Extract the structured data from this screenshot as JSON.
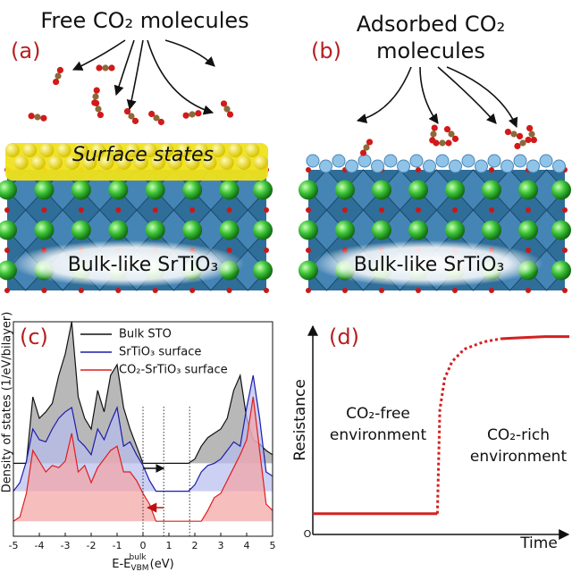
{
  "panels": {
    "a": {
      "label": "(a)",
      "title": "Free CO₂ molecules",
      "surface": "Surface states",
      "bulk": "Bulk-like SrTiO₃"
    },
    "b": {
      "label": "(b)",
      "title": [
        "Adsorbed CO₂",
        "molecules"
      ],
      "bulk": "Bulk-like SrTiO₃"
    }
  },
  "chart_data": [
    {
      "type": "line",
      "panel_label": "(c)",
      "ylabel": "Density of states (1/eV/bilayer)",
      "xlabel": {
        "text": "E-E",
        "sup": "bulk",
        "sub": "VBM",
        "unit": "(eV)"
      },
      "xlim": [
        -5,
        5
      ],
      "xticks": [
        -5,
        -4,
        -3,
        -2,
        -1,
        0,
        1,
        2,
        3,
        4,
        5
      ],
      "ylim": [
        0,
        10
      ],
      "legend": "upper center",
      "vlines": [
        0,
        0.8,
        1.8
      ],
      "x": [
        -5,
        -4.75,
        -4.5,
        -4.25,
        -4,
        -3.75,
        -3.5,
        -3.25,
        -3,
        -2.75,
        -2.5,
        -2.25,
        -2,
        -1.75,
        -1.5,
        -1.25,
        -1,
        -0.75,
        -0.5,
        -0.25,
        0,
        0.25,
        0.5,
        0.75,
        1,
        1.25,
        1.5,
        1.75,
        2,
        2.25,
        2.5,
        2.75,
        3,
        3.25,
        3.5,
        3.75,
        4,
        4.25,
        4.5,
        4.75,
        5
      ],
      "series": [
        {
          "name": "Bulk STO",
          "color": "#111111",
          "fill": "#9a9a9a",
          "values": [
            3.4,
            3.4,
            3.4,
            6.5,
            5.5,
            5.8,
            6.2,
            7.5,
            8.5,
            10,
            6.5,
            5.5,
            5.0,
            6.8,
            5.8,
            7.5,
            8.0,
            6.0,
            5.0,
            4.2,
            3.4,
            3.4,
            3.4,
            3.4,
            3.4,
            3.4,
            3.4,
            3.4,
            3.6,
            4.2,
            4.6,
            4.8,
            5.0,
            5.5,
            6.8,
            7.5,
            5.5,
            4.5,
            4.3,
            4.0,
            3.8
          ]
        },
        {
          "name": "SrTiO₃ surface",
          "color": "#1c1caa",
          "fill": "#b7bdf0",
          "values": [
            2.1,
            2.5,
            3.5,
            5.0,
            4.5,
            4.4,
            5.0,
            5.5,
            5.8,
            6.0,
            4.5,
            4.2,
            3.8,
            5.0,
            4.5,
            5.3,
            6.0,
            4.2,
            4.4,
            3.8,
            3.3,
            2.6,
            2.1,
            2.1,
            2.1,
            2.1,
            2.1,
            2.1,
            2.4,
            3.0,
            3.3,
            3.4,
            3.6,
            4.0,
            4.4,
            4.2,
            6.0,
            7.5,
            5.5,
            3.0,
            2.8
          ]
        },
        {
          "name": "CO₂-SrTiO₃ surface",
          "color": "#e01d1d",
          "fill": "#f4a3a3",
          "values": [
            0.7,
            0.9,
            2.0,
            4.0,
            3.5,
            3.0,
            3.3,
            3.2,
            3.5,
            4.8,
            3.0,
            3.3,
            2.5,
            3.2,
            3.6,
            4.0,
            4.2,
            3.0,
            3.0,
            2.6,
            2.0,
            1.5,
            0.7,
            0.7,
            0.7,
            0.7,
            0.7,
            0.7,
            0.7,
            0.7,
            1.2,
            1.8,
            2.0,
            2.6,
            3.2,
            3.8,
            4.5,
            6.5,
            4.0,
            1.5,
            1.2
          ]
        }
      ]
    },
    {
      "type": "line",
      "panel_label": "(d)",
      "ylabel": "Resistance",
      "xlabel": "Time",
      "origin_label": "O",
      "xlim": [
        0,
        10.5
      ],
      "ylim": [
        0,
        10
      ],
      "color": "#d42020",
      "annotations": [
        [
          "CO₂-free",
          "environment"
        ],
        [
          "CO₂-rich",
          "environment"
        ]
      ],
      "series": [
        {
          "style": "solid",
          "x": [
            0,
            5.1
          ],
          "values": [
            1,
            1
          ]
        },
        {
          "style": "dotted",
          "x": [
            5.1,
            5.2,
            5.4,
            5.7,
            6.2,
            7,
            7.7
          ],
          "values": [
            1,
            6,
            7.5,
            8.3,
            8.9,
            9.25,
            9.4
          ]
        },
        {
          "style": "solid",
          "x": [
            7.7,
            8.5,
            9.5,
            10.5
          ],
          "values": [
            9.4,
            9.45,
            9.5,
            9.5
          ]
        }
      ]
    }
  ]
}
